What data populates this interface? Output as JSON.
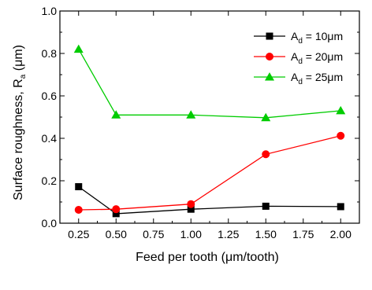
{
  "chart_data": {
    "type": "line",
    "title": "",
    "xlabel": "Feed per tooth (μm/tooth)",
    "ylabel": "Surface roughness, R",
    "ylabel_sub": "a",
    "ylabel_unit": " (μm)",
    "categories": [
      "0.25",
      "0.50",
      "1.00",
      "1.50",
      "2.00"
    ],
    "x_ticks": [
      "0.25",
      "0.50",
      "0.75",
      "1.00",
      "1.25",
      "1.50",
      "1.75",
      "2.00"
    ],
    "y_ticks": [
      "0.0",
      "0.2",
      "0.4",
      "0.6",
      "0.8",
      "1.0"
    ],
    "xlim": [
      0.125,
      2.125
    ],
    "ylim": [
      0,
      1.0
    ],
    "legend_position": "top-right",
    "grid": false,
    "series": [
      {
        "name_main": "A",
        "name_sub": "d",
        "name_rest": " = 10μm",
        "marker": "square",
        "color": "#000000",
        "x": [
          0.25,
          0.5,
          1.0,
          1.5,
          2.0
        ],
        "values": [
          0.172,
          0.045,
          0.066,
          0.08,
          0.078
        ]
      },
      {
        "name_main": "A",
        "name_sub": "d",
        "name_rest": " = 20μm",
        "marker": "circle",
        "color": "#ff0000",
        "x": [
          0.25,
          0.5,
          1.0,
          1.5,
          2.0
        ],
        "values": [
          0.063,
          0.066,
          0.09,
          0.325,
          0.412
        ]
      },
      {
        "name_main": "A",
        "name_sub": "d",
        "name_rest": " = 25μm",
        "marker": "triangle",
        "color": "#00cc00",
        "x": [
          0.25,
          0.5,
          1.0,
          1.5,
          2.0
        ],
        "values": [
          0.82,
          0.51,
          0.51,
          0.497,
          0.53
        ]
      }
    ]
  }
}
